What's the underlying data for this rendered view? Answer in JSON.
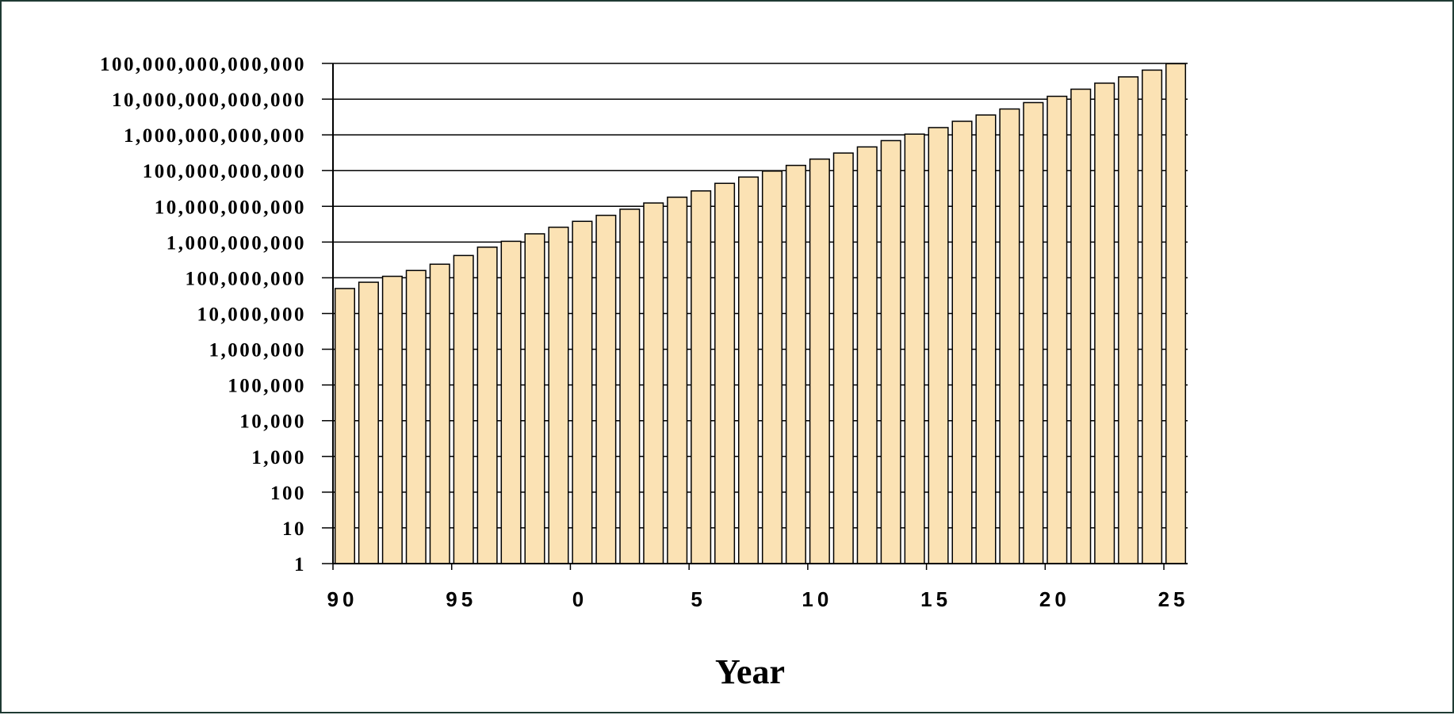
{
  "chart_data": {
    "type": "bar",
    "title": "",
    "xlabel": "Year",
    "ylabel": "",
    "yscale": "log",
    "ylim": [
      1,
      100000000000000
    ],
    "grid": "horizontal",
    "bar_color": "#fbe2b4",
    "bar_edge_color": "#000000",
    "y_tick_values": [
      1,
      10,
      100,
      1000,
      10000,
      100000,
      1000000,
      10000000,
      100000000,
      1000000000,
      10000000000,
      100000000000,
      1000000000000,
      10000000000000,
      100000000000000
    ],
    "y_tick_labels": [
      "1",
      "10",
      "100",
      "1,000",
      "10,000",
      "100,000",
      "1,000,000",
      "10,000,000",
      "100,000,000",
      "1,000,000,000",
      "10,000,000,000",
      "100,000,000,000",
      "1,000,000,000,000",
      "10,000,000,000,000",
      "100,000,000,000,000"
    ],
    "x_tick_labels": [
      "90",
      "95",
      "0",
      "5",
      "10",
      "15",
      "20",
      "25"
    ],
    "categories": [
      "90",
      "91",
      "92",
      "93",
      "94",
      "95",
      "96",
      "97",
      "98",
      "99",
      "0",
      "1",
      "2",
      "3",
      "4",
      "5",
      "6",
      "7",
      "8",
      "9",
      "10",
      "11",
      "12",
      "13",
      "14",
      "15",
      "16",
      "17",
      "18",
      "19",
      "20",
      "21",
      "22",
      "23",
      "24",
      "25"
    ],
    "values": [
      50000000,
      75000000,
      110000000,
      160000000,
      240000000,
      420000000,
      720000000,
      1050000000,
      1700000000,
      2600000000,
      3800000000,
      5600000000,
      8300000000,
      12400000000,
      18000000000,
      27000000000,
      44000000000,
      66000000000,
      97000000000,
      140000000000,
      210000000000,
      310000000000,
      460000000000,
      690000000000,
      1050000000000,
      1600000000000,
      2400000000000,
      3600000000000,
      5300000000000,
      8000000000000,
      12000000000000,
      19000000000000,
      28000000000000,
      42000000000000,
      65000000000000,
      98000000000000
    ]
  }
}
